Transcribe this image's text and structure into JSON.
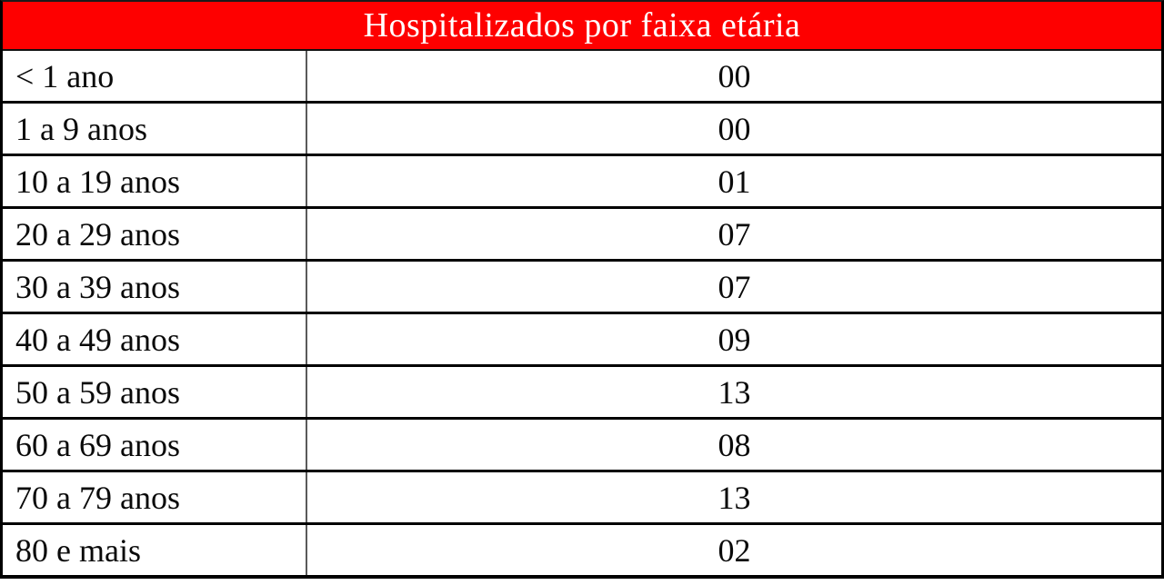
{
  "title": "Hospitalizados por faixa etária",
  "colors": {
    "header_bg": "#fe0000",
    "header_text": "#ffffff",
    "row_border": "#000000",
    "column_divider": "#5a5a5a",
    "cell_text": "#0a0a0a"
  },
  "chart_data": {
    "type": "table",
    "title": "Hospitalizados por faixa etária",
    "rows": [
      {
        "label": "< 1 ano",
        "value": "00"
      },
      {
        "label": "1 a 9 anos",
        "value": "00"
      },
      {
        "label": "10 a 19 anos",
        "value": "01"
      },
      {
        "label": "20 a 29 anos",
        "value": "07"
      },
      {
        "label": "30 a 39 anos",
        "value": "07"
      },
      {
        "label": "40 a 49 anos",
        "value": "09"
      },
      {
        "label": "50 a 59 anos",
        "value": "13"
      },
      {
        "label": "60 a 69 anos",
        "value": "08"
      },
      {
        "label": "70 a 79 anos",
        "value": "13"
      },
      {
        "label": "80 e mais",
        "value": "02"
      }
    ]
  }
}
